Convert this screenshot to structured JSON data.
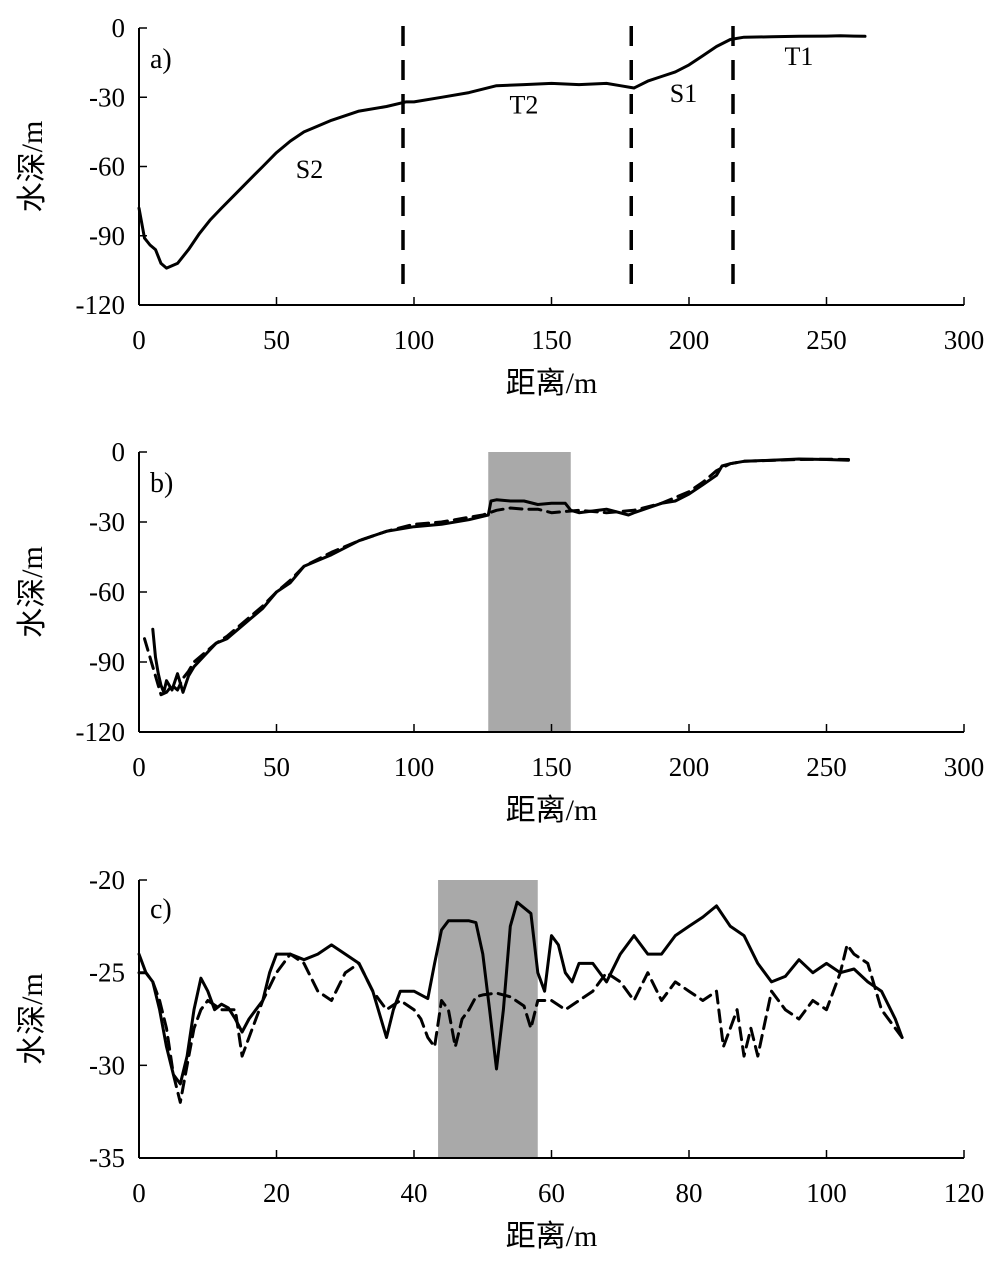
{
  "chart_data": [
    {
      "type": "line",
      "panel": "a)",
      "xlabel": "距离/m",
      "ylabel": "水深/m",
      "xlim": [
        0,
        300
      ],
      "ylim": [
        -120,
        0
      ],
      "xticks": [
        0,
        50,
        100,
        150,
        200,
        250,
        300
      ],
      "yticks": [
        0,
        -30,
        -60,
        -90,
        -120
      ],
      "xtick_labels": [
        "0",
        "50",
        "100",
        "150",
        "200",
        "250",
        "300"
      ],
      "ytick_labels": [
        "0",
        "-30",
        "-60",
        "-90",
        "-120"
      ],
      "series": [
        {
          "style": "solid",
          "color": "#000000",
          "x": [
            0,
            2,
            4,
            6,
            8,
            10,
            12,
            14,
            18,
            22,
            26,
            30,
            35,
            40,
            45,
            50,
            55,
            60,
            70,
            80,
            90,
            97,
            100,
            110,
            120,
            130,
            140,
            150,
            160,
            170,
            175,
            180,
            185,
            190,
            195,
            200,
            205,
            210,
            215,
            220,
            230,
            240,
            250,
            255,
            260,
            264
          ],
          "y": [
            -78,
            -91,
            -94,
            -96,
            -102,
            -104,
            -103,
            -102,
            -96,
            -89,
            -83,
            -78,
            -72,
            -66,
            -60,
            -54,
            -49,
            -45,
            -40,
            -36,
            -34,
            -32,
            -32,
            -30,
            -28,
            -25,
            -24.5,
            -24,
            -24.5,
            -24,
            -25,
            -26,
            -23,
            -21,
            -19,
            -16,
            -12,
            -8,
            -5,
            -4,
            -3.8,
            -3.6,
            -3.5,
            -3.4,
            -3.5,
            -3.6
          ]
        }
      ],
      "vlines": [
        96,
        179,
        216
      ],
      "annotations": [
        {
          "text": "S2",
          "x": 62,
          "y": -65
        },
        {
          "text": "T2",
          "x": 140,
          "y": -37
        },
        {
          "text": "S1",
          "x": 198,
          "y": -32
        },
        {
          "text": "T1",
          "x": 240,
          "y": -16
        }
      ]
    },
    {
      "type": "line",
      "panel": "b)",
      "xlabel": "距离/m",
      "ylabel": "水深/m",
      "xlim": [
        0,
        300
      ],
      "ylim": [
        -120,
        0
      ],
      "xticks": [
        0,
        50,
        100,
        150,
        200,
        250,
        300
      ],
      "yticks": [
        0,
        -30,
        -60,
        -90,
        -120
      ],
      "xtick_labels": [
        "0",
        "50",
        "100",
        "150",
        "200",
        "250",
        "300"
      ],
      "ytick_labels": [
        "0",
        "-30",
        "-60",
        "-90",
        "-120"
      ],
      "shaded_region": [
        127,
        157
      ],
      "series": [
        {
          "style": "solid",
          "color": "#000000",
          "x": [
            5,
            6,
            7,
            8,
            9,
            10,
            12,
            14,
            16,
            18,
            20,
            24,
            28,
            32,
            36,
            40,
            45,
            50,
            55,
            60,
            70,
            80,
            90,
            100,
            110,
            120,
            127,
            128,
            130,
            135,
            140,
            145,
            150,
            155,
            157,
            160,
            170,
            178,
            180,
            190,
            195,
            200,
            205,
            210,
            212,
            215,
            220,
            230,
            240,
            250,
            258
          ],
          "y": [
            -76,
            -88,
            -95,
            -100,
            -103,
            -98,
            -102,
            -95,
            -103,
            -96,
            -92,
            -87,
            -82,
            -80,
            -76,
            -72,
            -67,
            -60,
            -56,
            -49,
            -44,
            -38,
            -34,
            -32,
            -31,
            -29,
            -27,
            -21,
            -20.5,
            -21,
            -21,
            -22.5,
            -22,
            -22,
            -25,
            -26,
            -24.5,
            -27,
            -26,
            -22,
            -21,
            -18,
            -14,
            -10,
            -6,
            -5,
            -4,
            -3.5,
            -3,
            -3.2,
            -3.5
          ]
        },
        {
          "style": "dashed",
          "color": "#000000",
          "x": [
            2,
            4,
            6,
            8,
            10,
            12,
            14,
            16,
            18,
            20,
            24,
            28,
            32,
            36,
            40,
            45,
            50,
            55,
            60,
            70,
            80,
            90,
            100,
            110,
            120,
            125,
            130,
            135,
            140,
            145,
            150,
            155,
            160,
            170,
            180,
            190,
            200,
            205,
            210,
            215,
            220,
            230,
            240,
            250,
            258
          ],
          "y": [
            -80,
            -88,
            -96,
            -104,
            -103,
            -100,
            -102,
            -97,
            -94,
            -90,
            -86,
            -82,
            -79,
            -75,
            -71,
            -66,
            -60,
            -55,
            -49,
            -43,
            -38,
            -34,
            -31,
            -30,
            -28,
            -27,
            -25,
            -24,
            -24.5,
            -24.5,
            -26,
            -25.5,
            -25,
            -26,
            -25,
            -22,
            -17,
            -13,
            -8,
            -5,
            -4,
            -3.6,
            -3.2,
            -3.1,
            -3.2
          ]
        }
      ]
    },
    {
      "type": "line",
      "panel": "c)",
      "xlabel": "距离/m",
      "ylabel": "水深/m",
      "xlim": [
        0,
        120
      ],
      "ylim": [
        -35,
        -20
      ],
      "xticks": [
        0,
        20,
        40,
        60,
        80,
        100,
        120
      ],
      "yticks": [
        -20,
        -25,
        -30,
        -35
      ],
      "xtick_labels": [
        "0",
        "20",
        "40",
        "60",
        "80",
        "100",
        "120"
      ],
      "ytick_labels": [
        "-20",
        "-25",
        "-30",
        "-35"
      ],
      "shaded_region": [
        43.5,
        58
      ],
      "series": [
        {
          "style": "solid",
          "color": "#000000",
          "x": [
            0,
            1,
            2,
            3,
            4,
            5,
            6,
            7,
            8,
            9,
            10,
            11,
            12,
            13,
            14,
            15,
            16,
            17,
            18,
            19,
            20,
            22,
            24,
            26,
            28,
            30,
            32,
            34,
            36,
            37,
            38,
            40,
            42,
            43,
            44,
            45,
            46,
            47,
            48,
            49,
            50,
            51,
            52,
            53,
            54,
            55,
            56,
            57,
            58,
            59,
            60,
            61,
            62,
            63,
            64,
            66,
            68,
            70,
            72,
            74,
            76,
            78,
            80,
            82,
            84,
            86,
            88,
            90,
            92,
            94,
            96,
            98,
            100,
            102,
            104,
            106,
            108,
            110,
            111
          ],
          "y": [
            -24,
            -25,
            -25.5,
            -27,
            -29,
            -30.5,
            -31,
            -29.5,
            -27,
            -25.3,
            -26,
            -27,
            -26.7,
            -26.9,
            -27.5,
            -28.2,
            -27.5,
            -27,
            -26.5,
            -25,
            -24,
            -24,
            -24.3,
            -24,
            -23.5,
            -24,
            -24.5,
            -26,
            -28.5,
            -27,
            -26,
            -26,
            -26.4,
            -24.5,
            -22.7,
            -22.2,
            -22.2,
            -22.2,
            -22.2,
            -22.3,
            -24,
            -27,
            -30.2,
            -27,
            -22.5,
            -21.2,
            -21.5,
            -21.8,
            -25,
            -26,
            -23,
            -23.5,
            -25,
            -25.5,
            -24.5,
            -24.5,
            -25.5,
            -24,
            -23,
            -24,
            -24,
            -23,
            -22.5,
            -22,
            -21.4,
            -22.5,
            -23,
            -24.5,
            -25.5,
            -25.2,
            -24.3,
            -25,
            -24.5,
            -25,
            -24.8,
            -25.5,
            -26,
            -27.5,
            -28.5
          ]
        },
        {
          "style": "dashed",
          "color": "#000000",
          "x": [
            0,
            1,
            2,
            3,
            4,
            5,
            6,
            7,
            8,
            9,
            10,
            12,
            14,
            15,
            16,
            18,
            20,
            22,
            24,
            26,
            28,
            30,
            32,
            34,
            36,
            38,
            40,
            41,
            42,
            43,
            44,
            45,
            46,
            47,
            48,
            49,
            50,
            52,
            54,
            56,
            57,
            58,
            60,
            62,
            64,
            66,
            68,
            70,
            72,
            74,
            76,
            78,
            80,
            82,
            84,
            85,
            86,
            87,
            88,
            89,
            90,
            92,
            94,
            96,
            98,
            100,
            102,
            103,
            104,
            106,
            108,
            110,
            111
          ],
          "y": [
            -25,
            -25,
            -25.5,
            -26.5,
            -28,
            -30.5,
            -32,
            -30,
            -28,
            -27,
            -26.5,
            -27,
            -27,
            -29.5,
            -28.5,
            -26.5,
            -25,
            -24,
            -24.5,
            -26,
            -26.5,
            -25,
            -24.5,
            -26,
            -27,
            -26.5,
            -27,
            -27.5,
            -28.5,
            -29,
            -26.5,
            -27,
            -29,
            -27.5,
            -27,
            -26.3,
            -26.2,
            -26.1,
            -26.3,
            -26.8,
            -28,
            -26.5,
            -26.5,
            -27,
            -26.5,
            -26,
            -25,
            -25.5,
            -26.5,
            -25,
            -26.5,
            -25.5,
            -26,
            -26.5,
            -26,
            -29,
            -28,
            -27,
            -29.5,
            -28,
            -29.5,
            -26,
            -27,
            -27.5,
            -26.5,
            -27,
            -25,
            -23.5,
            -24,
            -24.5,
            -27,
            -28,
            -28.5
          ]
        }
      ]
    }
  ]
}
